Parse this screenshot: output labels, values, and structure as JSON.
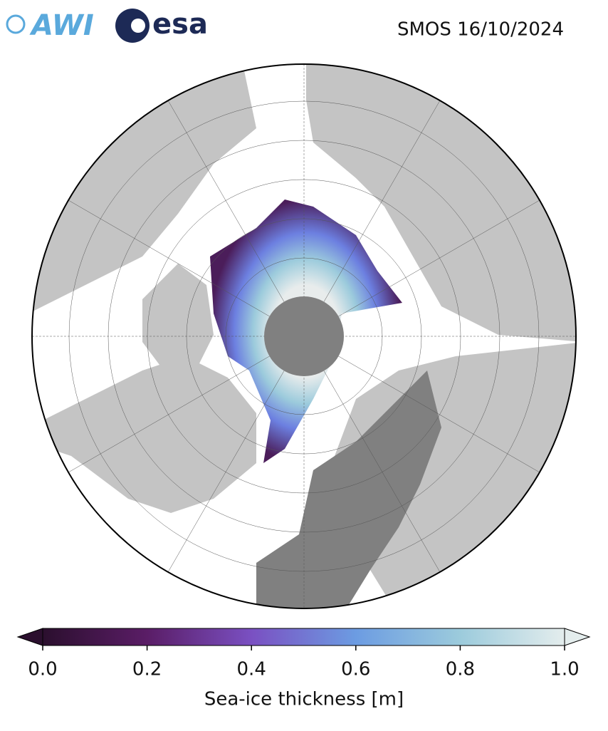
{
  "header": {
    "logos": {
      "awi": "AWI",
      "esa": "esa"
    }
  },
  "map": {
    "title": "SMOS 16/10/2024",
    "colorbar": {
      "label": "Sea-ice thickness [m]",
      "lim": [
        0,
        1
      ],
      "ticks": [
        {
          "value": 0,
          "label": "0.0"
        },
        0.2,
        0.4,
        0.6,
        0.8,
        {
          "value": 1,
          "label": "1.0"
        }
      ]
    }
  }
}
